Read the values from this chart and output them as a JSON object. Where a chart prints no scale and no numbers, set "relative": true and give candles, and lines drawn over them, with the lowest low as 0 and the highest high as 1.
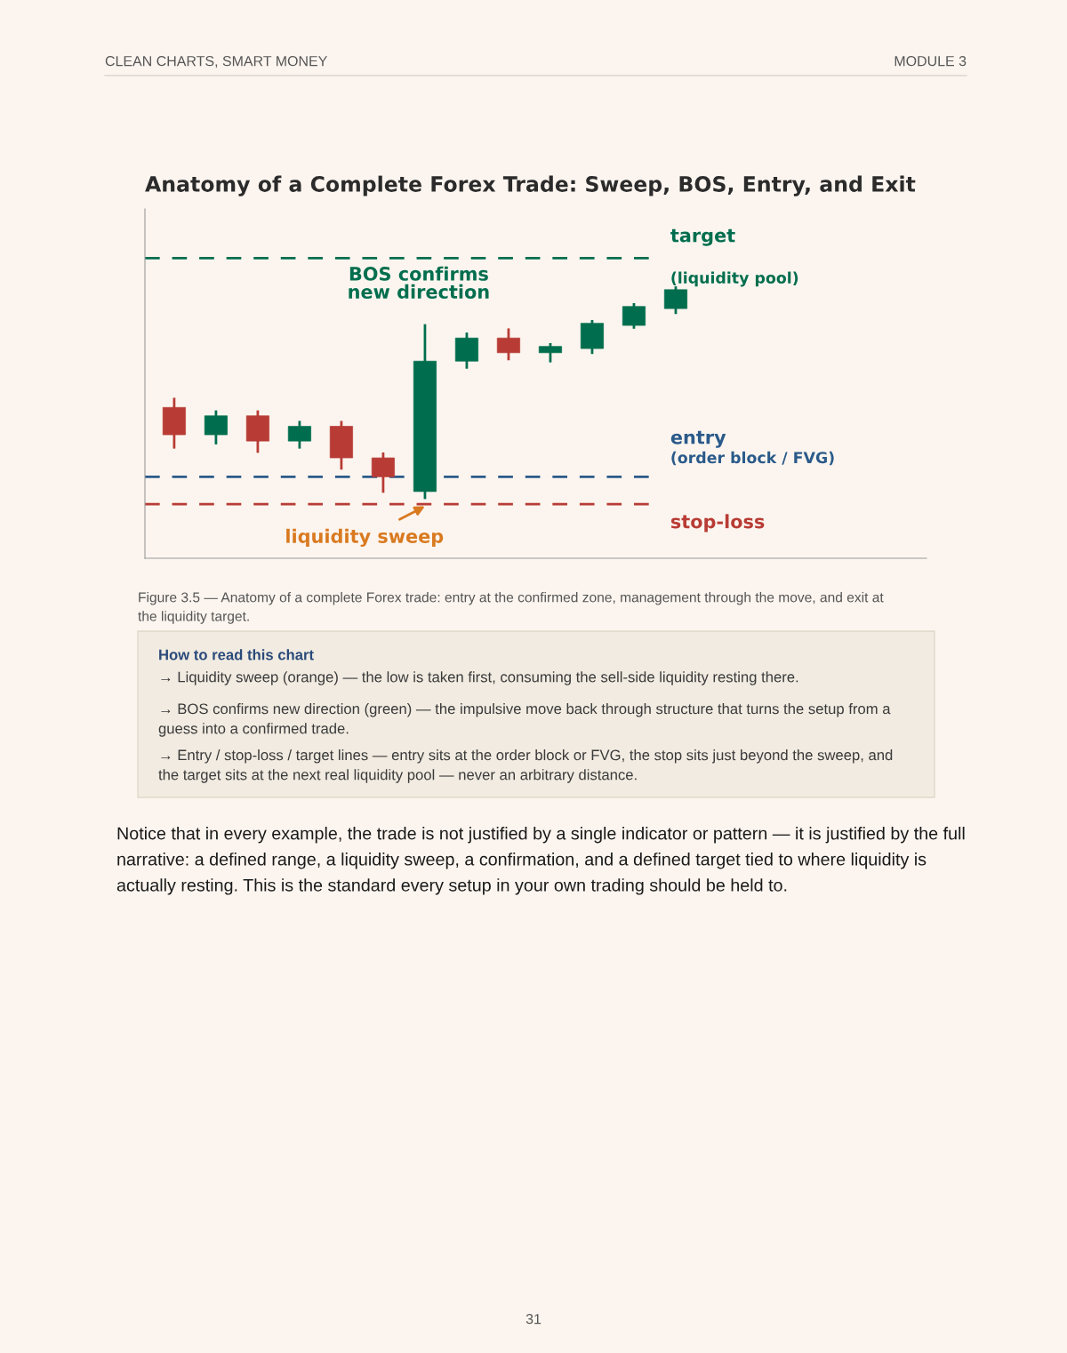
{
  "chart_data": {
    "type": "candlestick",
    "title": "Anatomy of a Complete Forex Trade: Sweep, BOS, Entry, and Exit",
    "relative": true,
    "categories": [
      null,
      null,
      null,
      null,
      null,
      null,
      null,
      null,
      null,
      null,
      null,
      null,
      null
    ],
    "ohlc": [
      [
        0.43,
        0.47,
        0.24,
        0.3
      ],
      [
        0.3,
        0.41,
        0.26,
        0.39
      ],
      [
        0.39,
        0.41,
        0.22,
        0.27
      ],
      [
        0.27,
        0.36,
        0.24,
        0.34
      ],
      [
        0.34,
        0.36,
        0.14,
        0.19
      ],
      [
        0.19,
        0.21,
        0.03,
        0.1
      ],
      [
        0.03,
        0.82,
        0.0,
        0.65
      ],
      [
        0.65,
        0.78,
        0.62,
        0.76
      ],
      [
        0.76,
        0.8,
        0.66,
        0.69
      ],
      [
        0.69,
        0.73,
        0.65,
        0.72
      ],
      [
        0.71,
        0.84,
        0.69,
        0.83
      ],
      [
        0.82,
        0.92,
        0.81,
        0.91
      ],
      [
        0.9,
        1.0,
        0.88,
        0.99
      ]
    ],
    "colors": [
      "#b83c35",
      "#006e4e",
      "#b83c35",
      "#006e4e",
      "#b83c35",
      "#b83c35",
      "#006e4e",
      "#006e4e",
      "#b83c35",
      "#006e4e",
      "#006e4e",
      "#006e4e",
      "#006e4e"
    ],
    "ref_lines": [
      {
        "axis": "y",
        "value": 1.14,
        "label": "target",
        "color": "#006e4e",
        "line_style": "dashed"
      },
      {
        "axis": "y",
        "value": 0.1,
        "label": "entry",
        "color": "#2a5a8a",
        "line_style": "dashed"
      },
      {
        "axis": "y",
        "value": -0.03,
        "label": "stop-loss",
        "color": "#b83c35",
        "line_style": "dashed"
      }
    ],
    "legend": false,
    "annotations": [
      "BOS confirms\nnew direction",
      "liquidity sweep",
      "(liquidity pool)",
      "(order block / FVG)",
      "CLEAN CHARTS, SMART MONEY",
      "MODULE 3",
      "Figure 3.5 — Anatomy of a complete Forex trade: entry at the confirmed zone, management through the move, and exit at\nthe liquidity target.",
      "How to read this chart",
      "→ Liquidity sweep (orange) — the low is taken first, consuming the sell-side liquidity resting there.",
      "→ BOS confirms new direction (green) — the impulsive move back through structure that turns the setup from a\nguess into a confirmed trade.",
      "→ Entry / stop-loss / target lines — entry sits at the order block or FVG, the stop sits just beyond the sweep, and\nthe target sits at the next real liquidity pool — never an arbitrary distance.",
      "Notice that in every example, the trade is not justified by a single indicator or pattern — it is justified by the full\nnarrative: a defined range, a liquidity sweep, a confirmation, and a defined target tied to where liquidity is\nactually resting. This is the standard every setup in your own trading should be held to.",
      "31"
    ]
  }
}
